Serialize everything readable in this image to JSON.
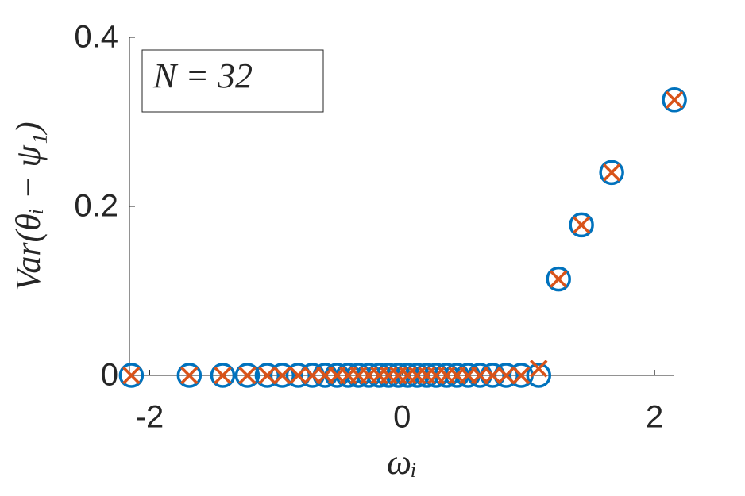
{
  "chart_data": {
    "type": "scatter",
    "x": [
      -2.145,
      -1.686,
      -1.421,
      -1.226,
      -1.069,
      -0.95,
      -0.824,
      -0.711,
      -0.61,
      -0.516,
      -0.428,
      -0.346,
      -0.264,
      -0.182,
      -0.107,
      -0.031,
      0.044,
      0.119,
      0.195,
      0.27,
      0.352,
      0.434,
      0.522,
      0.616,
      0.717,
      0.824,
      0.943,
      1.082,
      1.239,
      1.421,
      1.66,
      2.157
    ],
    "series": [
      {
        "marker": "circle",
        "color": "#0072BD",
        "values": [
          0,
          0,
          0,
          0,
          0,
          0,
          0,
          0,
          0,
          0,
          0,
          0,
          0,
          0,
          0,
          0,
          0,
          0,
          0,
          0,
          0,
          0,
          0,
          0,
          0,
          0,
          0,
          0,
          0.114,
          0.178,
          0.24,
          0.326
        ]
      },
      {
        "marker": "cross",
        "color": "#D95319",
        "values": [
          0,
          0,
          0,
          0,
          0,
          0,
          0,
          0,
          0,
          0,
          0,
          0,
          0,
          0,
          0,
          0,
          0,
          0,
          0,
          0,
          0,
          0,
          0,
          0,
          0,
          0,
          0,
          0.008,
          0.114,
          0.178,
          0.24,
          0.326
        ]
      }
    ],
    "xlim": [
      -2.16,
      2.15
    ],
    "ylim": [
      0,
      0.4
    ],
    "xticks": [
      -2,
      0,
      2
    ],
    "yticks": [
      0,
      0.2,
      0.4
    ],
    "xlabel": "ωᵢ",
    "ylabel": "Var(θᵢ − ψ₁)",
    "annotation": "N = 32"
  }
}
